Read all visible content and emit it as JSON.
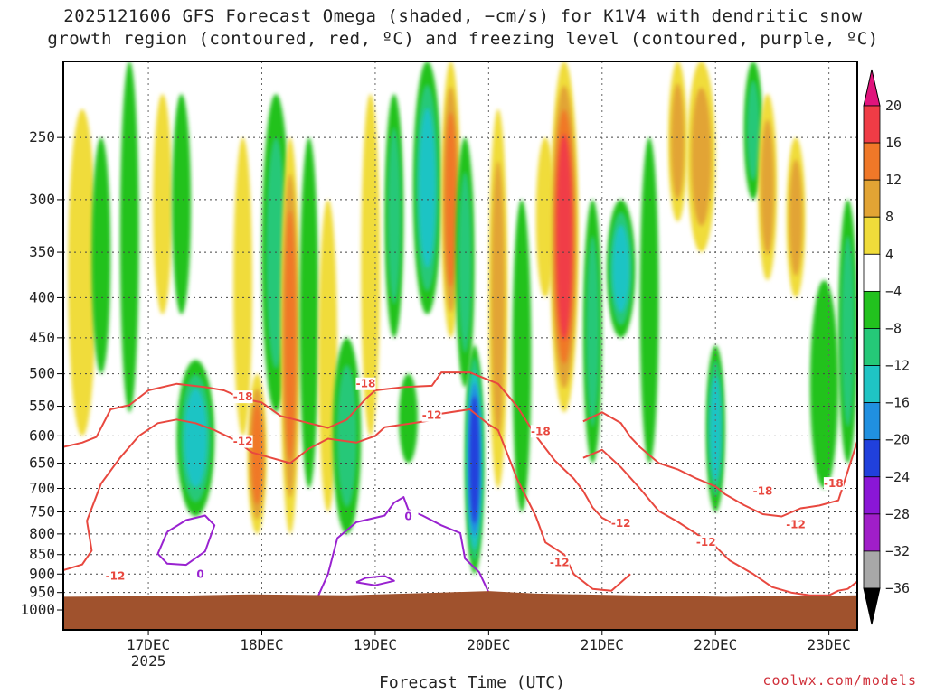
{
  "title": {
    "line1": "2025121606 GFS Forecast Omega (shaded, −cm/s) for K1V4 with dendritic snow",
    "line2": "growth region (contoured, red, ºC) and freezing level (contoured, purple, ºC)"
  },
  "x_axis_label": "Forecast Time (UTC)",
  "credit": "coolwx.com/models",
  "chart_data": {
    "type": "heatmap",
    "x_range_hours": [
      0,
      168
    ],
    "x_ticks": [
      {
        "hour": 18,
        "label": "17DEC",
        "sub": "2025"
      },
      {
        "hour": 42,
        "label": "18DEC",
        "sub": ""
      },
      {
        "hour": 66,
        "label": "19DEC",
        "sub": ""
      },
      {
        "hour": 90,
        "label": "20DEC",
        "sub": ""
      },
      {
        "hour": 114,
        "label": "21DEC",
        "sub": ""
      },
      {
        "hour": 138,
        "label": "22DEC",
        "sub": ""
      },
      {
        "hour": 162,
        "label": "23DEC",
        "sub": ""
      }
    ],
    "y_range_hpa": [
      1060,
      200
    ],
    "y_ticks": [
      250,
      300,
      350,
      400,
      450,
      500,
      550,
      600,
      650,
      700,
      750,
      800,
      850,
      900,
      950,
      1000
    ],
    "colorbar": {
      "labels": [
        "20",
        "16",
        "12",
        "8",
        "4",
        "−4",
        "−8",
        "−12",
        "−16",
        "−20",
        "−24",
        "−28",
        "−32",
        "−36"
      ],
      "colors": [
        "#f03c46",
        "#f07828",
        "#e2a434",
        "#f0dc3a",
        "#ffffff",
        "#22c21e",
        "#25c878",
        "#1fc4c4",
        "#2090e0",
        "#2040dc",
        "#8a16d6",
        "#a01ec8",
        "#a8a8a8"
      ],
      "top_arrow_color": "#e0147c",
      "bottom_arrow_color": "#000000"
    },
    "omega_features": [
      {
        "h": 4,
        "p0": 230,
        "p1": 600,
        "w": 3,
        "v": 7
      },
      {
        "h": 8,
        "p0": 250,
        "p1": 500,
        "w": 2,
        "v": -7
      },
      {
        "h": 14,
        "p0": 200,
        "p1": 560,
        "w": 2,
        "v": -7
      },
      {
        "h": 21,
        "p0": 220,
        "p1": 420,
        "w": 2,
        "v": 7
      },
      {
        "h": 25,
        "p0": 220,
        "p1": 420,
        "w": 2,
        "v": -7
      },
      {
        "h": 28,
        "p0": 480,
        "p1": 760,
        "w": 4,
        "v": -13
      },
      {
        "h": 38,
        "p0": 250,
        "p1": 600,
        "w": 2,
        "v": 6
      },
      {
        "h": 41,
        "p0": 500,
        "p1": 800,
        "w": 2,
        "v": 12
      },
      {
        "h": 45,
        "p0": 220,
        "p1": 560,
        "w": 3,
        "v": -8
      },
      {
        "h": 48,
        "p0": 250,
        "p1": 800,
        "w": 2,
        "v": 14
      },
      {
        "h": 52,
        "p0": 250,
        "p1": 700,
        "w": 2,
        "v": -7
      },
      {
        "h": 56,
        "p0": 300,
        "p1": 750,
        "w": 2,
        "v": 7
      },
      {
        "h": 60,
        "p0": 450,
        "p1": 800,
        "w": 3,
        "v": -9
      },
      {
        "h": 65,
        "p0": 220,
        "p1": 600,
        "w": 2,
        "v": 6
      },
      {
        "h": 70,
        "p0": 220,
        "p1": 450,
        "w": 2,
        "v": -8
      },
      {
        "h": 73,
        "p0": 500,
        "p1": 650,
        "w": 2,
        "v": -7
      },
      {
        "h": 77,
        "p0": 200,
        "p1": 420,
        "w": 3,
        "v": -14
      },
      {
        "h": 82,
        "p0": 200,
        "p1": 450,
        "w": 2,
        "v": 13
      },
      {
        "h": 85,
        "p0": 250,
        "p1": 520,
        "w": 2,
        "v": -8
      },
      {
        "h": 87,
        "p0": 460,
        "p1": 900,
        "w": 2,
        "v": -22
      },
      {
        "h": 92,
        "p0": 230,
        "p1": 700,
        "w": 2,
        "v": 9
      },
      {
        "h": 97,
        "p0": 300,
        "p1": 750,
        "w": 2,
        "v": -7
      },
      {
        "h": 102,
        "p0": 250,
        "p1": 400,
        "w": 2,
        "v": 5
      },
      {
        "h": 106,
        "p0": 200,
        "p1": 560,
        "w": 3,
        "v": 18
      },
      {
        "h": 112,
        "p0": 300,
        "p1": 650,
        "w": 2,
        "v": -9
      },
      {
        "h": 118,
        "p0": 300,
        "p1": 450,
        "w": 3,
        "v": -12
      },
      {
        "h": 124,
        "p0": 250,
        "p1": 650,
        "w": 2,
        "v": -7
      },
      {
        "h": 130,
        "p0": 200,
        "p1": 320,
        "w": 2,
        "v": 10
      },
      {
        "h": 135,
        "p0": 200,
        "p1": 350,
        "w": 3,
        "v": 11
      },
      {
        "h": 138,
        "p0": 460,
        "p1": 750,
        "w": 2,
        "v": -12
      },
      {
        "h": 146,
        "p0": 200,
        "p1": 300,
        "w": 2,
        "v": -8
      },
      {
        "h": 149,
        "p0": 220,
        "p1": 380,
        "w": 2,
        "v": 9
      },
      {
        "h": 155,
        "p0": 250,
        "p1": 400,
        "w": 2,
        "v": 8
      },
      {
        "h": 161,
        "p0": 380,
        "p1": 700,
        "w": 3,
        "v": -7
      },
      {
        "h": 166,
        "p0": 300,
        "p1": 650,
        "w": 2,
        "v": -9
      }
    ],
    "series": [
      {
        "name": "dgz_-18C_left",
        "color": "#e8483f",
        "label": "-18",
        "label_pos": {
          "h": 38,
          "p": 535
        },
        "points": [
          [
            0,
            620
          ],
          [
            4,
            612
          ],
          [
            7,
            602
          ],
          [
            10,
            555
          ],
          [
            14,
            548
          ],
          [
            18,
            525
          ],
          [
            24,
            515
          ],
          [
            30,
            520
          ],
          [
            34,
            525
          ],
          [
            38,
            538
          ],
          [
            42,
            544
          ],
          [
            46,
            566
          ],
          [
            52,
            578
          ],
          [
            56,
            586
          ],
          [
            60,
            572
          ],
          [
            64,
            538
          ],
          [
            66,
            525
          ],
          [
            72,
            520
          ],
          [
            78,
            518
          ],
          [
            80,
            498
          ],
          [
            86,
            498
          ],
          [
            92,
            515
          ],
          [
            96,
            550
          ],
          [
            100,
            600
          ],
          [
            104,
            645
          ],
          [
            108,
            680
          ],
          [
            110,
            705
          ],
          [
            112,
            740
          ],
          [
            114,
            763
          ],
          [
            118,
            785
          ],
          [
            120,
            790
          ]
        ]
      },
      {
        "name": "dgz_-12C_left",
        "color": "#e8483f",
        "label": "-12",
        "label_pos": {
          "h": 38,
          "p": 610
        },
        "points": [
          [
            0,
            890
          ],
          [
            4,
            875
          ],
          [
            6,
            840
          ],
          [
            5,
            770
          ],
          [
            8,
            690
          ],
          [
            12,
            640
          ],
          [
            16,
            600
          ],
          [
            20,
            578
          ],
          [
            24,
            572
          ],
          [
            28,
            578
          ],
          [
            32,
            590
          ],
          [
            36,
            606
          ],
          [
            40,
            630
          ],
          [
            44,
            640
          ],
          [
            48,
            650
          ],
          [
            52,
            623
          ],
          [
            56,
            605
          ],
          [
            62,
            612
          ],
          [
            66,
            600
          ],
          [
            68,
            585
          ],
          [
            74,
            578
          ],
          [
            78,
            573
          ],
          [
            80,
            562
          ],
          [
            86,
            555
          ],
          [
            90,
            580
          ],
          [
            92,
            590
          ],
          [
            96,
            680
          ],
          [
            100,
            760
          ],
          [
            102,
            820
          ],
          [
            106,
            850
          ],
          [
            108,
            900
          ],
          [
            112,
            940
          ],
          [
            116,
            945
          ],
          [
            120,
            900
          ]
        ]
      },
      {
        "name": "dgz_-18C_right",
        "color": "#e8483f",
        "label": "-18",
        "label_pos": {
          "h": 148,
          "p": 706
        },
        "points": [
          [
            110,
            575
          ],
          [
            114,
            560
          ],
          [
            118,
            578
          ],
          [
            120,
            602
          ],
          [
            122,
            620
          ],
          [
            126,
            650
          ],
          [
            130,
            662
          ],
          [
            134,
            680
          ],
          [
            138,
            696
          ],
          [
            140,
            712
          ],
          [
            144,
            735
          ],
          [
            148,
            755
          ],
          [
            152,
            760
          ],
          [
            156,
            742
          ],
          [
            160,
            736
          ],
          [
            164,
            725
          ],
          [
            168,
            610
          ]
        ]
      },
      {
        "name": "dgz_-12C_right",
        "color": "#e8483f",
        "label": "-12",
        "label_pos": {
          "h": 155,
          "p": 778
        },
        "points": [
          [
            110,
            640
          ],
          [
            114,
            625
          ],
          [
            118,
            658
          ],
          [
            122,
            700
          ],
          [
            126,
            748
          ],
          [
            130,
            772
          ],
          [
            134,
            800
          ],
          [
            138,
            830
          ],
          [
            141,
            865
          ],
          [
            146,
            900
          ],
          [
            150,
            935
          ],
          [
            154,
            950
          ],
          [
            158,
            958
          ],
          [
            162,
            958
          ],
          [
            164,
            945
          ],
          [
            166,
            940
          ],
          [
            168,
            920
          ]
        ]
      },
      {
        "name": "freezing_0C_a",
        "color": "#9922d0",
        "label": "0",
        "label_pos": {
          "h": 29,
          "p": 900
        },
        "points": [
          [
            22,
            795
          ],
          [
            26,
            768
          ],
          [
            30,
            758
          ],
          [
            32,
            780
          ],
          [
            30,
            842
          ],
          [
            26,
            876
          ],
          [
            22,
            873
          ],
          [
            20,
            848
          ],
          [
            22,
            795
          ]
        ]
      },
      {
        "name": "freezing_0C_b",
        "color": "#9922d0",
        "label": "0",
        "label_pos": {
          "h": 73,
          "p": 760
        },
        "points": [
          [
            54,
            958
          ],
          [
            56,
            900
          ],
          [
            58,
            810
          ],
          [
            62,
            773
          ],
          [
            68,
            758
          ],
          [
            70,
            730
          ],
          [
            72,
            718
          ],
          [
            73,
            745
          ],
          [
            76,
            758
          ],
          [
            80,
            780
          ],
          [
            84,
            798
          ],
          [
            85,
            860
          ],
          [
            88,
            895
          ],
          [
            90,
            950
          ],
          [
            92,
            958
          ]
        ]
      },
      {
        "name": "freezing_0C_c",
        "color": "#9922d0",
        "label": "",
        "label_pos": {
          "h": 0,
          "p": 0
        },
        "points": [
          [
            62,
            922
          ],
          [
            64,
            910
          ],
          [
            68,
            905
          ],
          [
            70,
            918
          ],
          [
            66,
            930
          ],
          [
            62,
            922
          ]
        ]
      }
    ],
    "annotations": [
      {
        "text": "-18",
        "h": 64,
        "p": 515,
        "color": "#e8483f"
      },
      {
        "text": "-12",
        "h": 78,
        "p": 565,
        "color": "#e8483f"
      },
      {
        "text": "-18",
        "h": 101,
        "p": 592,
        "color": "#e8483f"
      },
      {
        "text": "-12",
        "h": 105,
        "p": 870,
        "color": "#e8483f"
      },
      {
        "text": "-12",
        "h": 11,
        "p": 905,
        "color": "#e8483f"
      },
      {
        "text": "-12",
        "h": 118,
        "p": 775,
        "color": "#e8483f"
      },
      {
        "text": "-12",
        "h": 136,
        "p": 820,
        "color": "#e8483f"
      },
      {
        "text": "-18",
        "h": 163,
        "p": 690,
        "color": "#e8483f"
      }
    ],
    "terrain": {
      "color": "#a0522d",
      "surface_hpa": [
        [
          0,
          962
        ],
        [
          20,
          960
        ],
        [
          40,
          955
        ],
        [
          60,
          958
        ],
        [
          80,
          950
        ],
        [
          90,
          946
        ],
        [
          100,
          953
        ],
        [
          120,
          958
        ],
        [
          140,
          962
        ],
        [
          168,
          958
        ]
      ]
    }
  }
}
